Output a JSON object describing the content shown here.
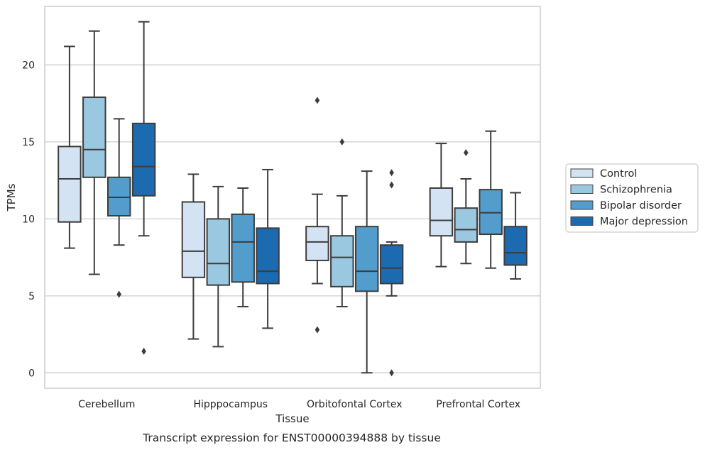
{
  "chart_data": {
    "type": "box",
    "caption": "Transcript expression for ENST00000394888 by tissue",
    "xlabel": "Tissue",
    "ylabel": "TPMs",
    "ylim": [
      -1,
      23.8
    ],
    "yticks": [
      0,
      5,
      10,
      15,
      20
    ],
    "grid": "horizontal",
    "legend_position": "right",
    "categories": [
      "Cerebellum",
      "Hipppocampus",
      "Orbitofontal Cortex",
      "Prefrontal Cortex"
    ],
    "series": [
      {
        "name": "Control",
        "color": "#d3e3f3",
        "boxes": [
          {
            "whislo": 8.1,
            "q1": 9.8,
            "med": 12.6,
            "q3": 14.7,
            "whishi": 21.2,
            "fliers": []
          },
          {
            "whislo": 2.2,
            "q1": 6.2,
            "med": 7.9,
            "q3": 11.1,
            "whishi": 12.9,
            "fliers": []
          },
          {
            "whislo": 5.8,
            "q1": 7.3,
            "med": 8.5,
            "q3": 9.5,
            "whishi": 11.6,
            "fliers": [
              17.7,
              2.8
            ]
          },
          {
            "whislo": 6.9,
            "q1": 8.9,
            "med": 9.9,
            "q3": 12.0,
            "whishi": 14.9,
            "fliers": []
          }
        ]
      },
      {
        "name": "Schizophrenia",
        "color": "#9ac8e0",
        "boxes": [
          {
            "whislo": 6.4,
            "q1": 12.7,
            "med": 14.5,
            "q3": 17.9,
            "whishi": 22.2,
            "fliers": []
          },
          {
            "whislo": 1.7,
            "q1": 5.7,
            "med": 7.1,
            "q3": 10.0,
            "whishi": 12.1,
            "fliers": []
          },
          {
            "whislo": 4.3,
            "q1": 5.6,
            "med": 7.5,
            "q3": 8.9,
            "whishi": 11.5,
            "fliers": [
              15.0
            ]
          },
          {
            "whislo": 7.1,
            "q1": 8.5,
            "med": 9.3,
            "q3": 10.7,
            "whishi": 12.6,
            "fliers": [
              14.3
            ]
          }
        ]
      },
      {
        "name": "Bipolar disorder",
        "color": "#529dcc",
        "boxes": [
          {
            "whislo": 8.3,
            "q1": 10.2,
            "med": 11.4,
            "q3": 12.7,
            "whishi": 16.5,
            "fliers": [
              5.1
            ]
          },
          {
            "whislo": 4.3,
            "q1": 5.9,
            "med": 8.5,
            "q3": 10.3,
            "whishi": 12.0,
            "fliers": []
          },
          {
            "whislo": 0.0,
            "q1": 5.3,
            "med": 6.6,
            "q3": 9.5,
            "whishi": 13.1,
            "fliers": []
          },
          {
            "whislo": 6.8,
            "q1": 9.0,
            "med": 10.4,
            "q3": 11.9,
            "whishi": 15.7,
            "fliers": []
          }
        ]
      },
      {
        "name": "Major depression",
        "color": "#1c6aaf",
        "boxes": [
          {
            "whislo": 8.9,
            "q1": 11.5,
            "med": 13.4,
            "q3": 16.2,
            "whishi": 22.8,
            "fliers": [
              1.4
            ]
          },
          {
            "whislo": 2.9,
            "q1": 5.8,
            "med": 6.6,
            "q3": 9.4,
            "whishi": 13.2,
            "fliers": []
          },
          {
            "whislo": 5.0,
            "q1": 5.8,
            "med": 6.8,
            "q3": 8.3,
            "whishi": 8.5,
            "fliers": [
              13.0,
              12.2,
              0.0
            ]
          },
          {
            "whislo": 6.1,
            "q1": 7.0,
            "med": 7.8,
            "q3": 9.5,
            "whishi": 11.7,
            "fliers": []
          }
        ]
      }
    ]
  }
}
